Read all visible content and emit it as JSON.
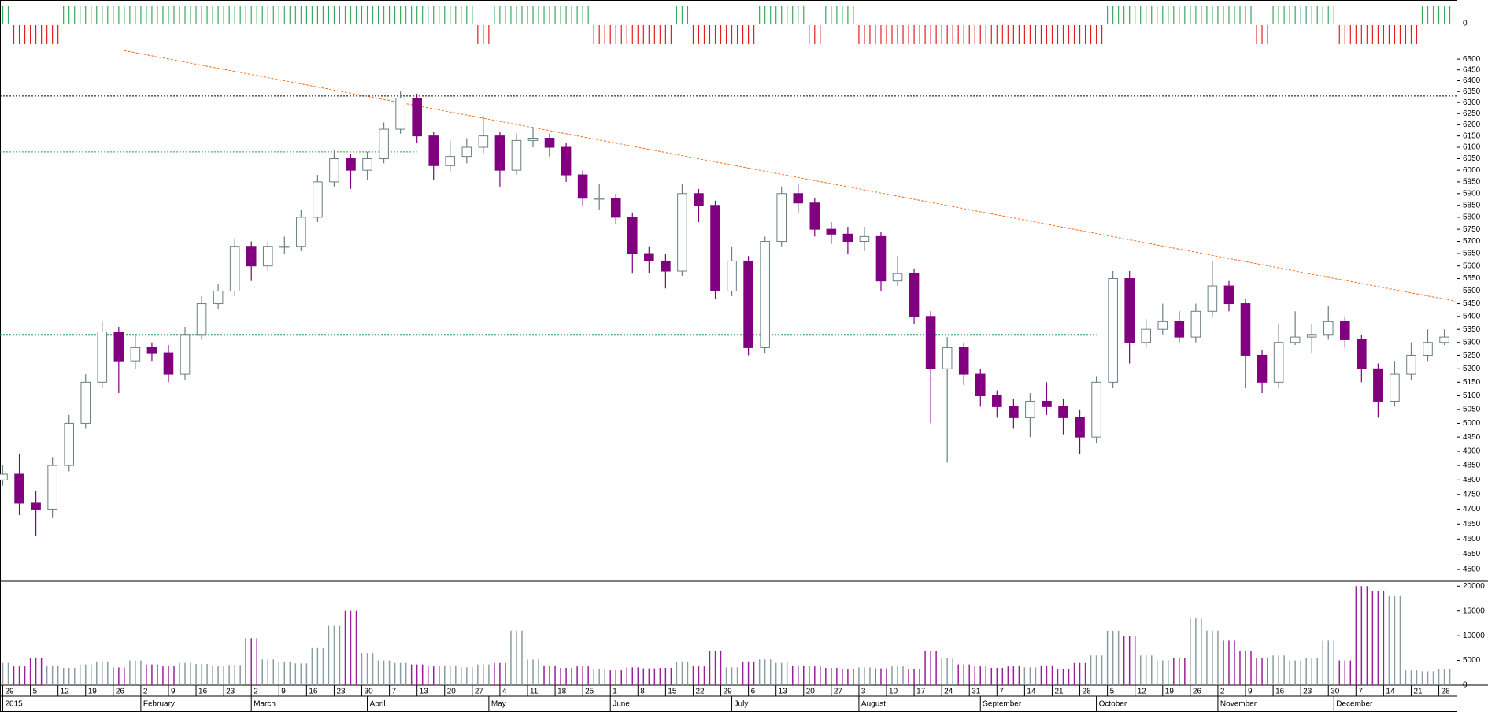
{
  "chart_data": {
    "type": "candlestick",
    "log_scale": true,
    "up_color": "#6b7f86",
    "down_color": "#800080",
    "x": [
      0,
      3,
      6,
      9,
      12,
      15,
      18,
      21,
      24,
      27,
      30,
      33,
      36,
      39,
      42,
      45,
      48,
      51,
      54,
      57,
      60,
      63,
      66,
      69,
      72,
      75,
      78,
      81,
      84,
      87,
      90,
      93,
      96,
      99,
      102,
      105,
      108,
      111,
      114,
      117,
      120,
      123,
      126,
      129,
      132,
      135,
      138,
      141,
      144,
      147,
      150,
      153,
      156,
      159,
      162,
      165,
      168,
      171,
      174,
      177,
      180,
      183,
      186,
      189,
      192,
      195,
      198,
      201,
      204,
      207,
      210,
      213,
      216,
      219,
      222,
      225,
      228,
      231,
      234,
      237,
      240,
      243,
      246,
      249,
      252,
      255,
      258,
      261
    ],
    "open": [
      4800,
      4820,
      4720,
      4700,
      4850,
      5000,
      5150,
      5340,
      5230,
      5280,
      5260,
      5180,
      5330,
      5450,
      5500,
      5680,
      5600,
      5680,
      5680,
      5800,
      5950,
      6050,
      6000,
      6050,
      6180,
      6320,
      6150,
      6020,
      6060,
      6100,
      6150,
      6000,
      6130,
      6140,
      6100,
      5980,
      5880,
      5880,
      5800,
      5650,
      5620,
      5580,
      5900,
      5850,
      5500,
      5620,
      5280,
      5700,
      5900,
      5860,
      5750,
      5730,
      5700,
      5720,
      5540,
      5570,
      5400,
      5200,
      5280,
      5180,
      5100,
      5060,
      5020,
      5080,
      5060,
      5020,
      4950,
      5150,
      5550,
      5300,
      5350,
      5380,
      5320,
      5420,
      5520,
      5450,
      5250,
      5150,
      5300,
      5320,
      5330,
      5380,
      5310,
      5200,
      5080,
      5180,
      5250,
      5300
    ],
    "high": [
      4850,
      4890,
      4760,
      4880,
      5030,
      5180,
      5380,
      5360,
      5330,
      5300,
      5290,
      5360,
      5480,
      5530,
      5710,
      5700,
      5700,
      5720,
      5830,
      5980,
      6090,
      6070,
      6080,
      6210,
      6350,
      6340,
      6170,
      6130,
      6140,
      6240,
      6170,
      6160,
      6190,
      6160,
      6120,
      6000,
      5940,
      5900,
      5820,
      5680,
      5650,
      5940,
      5920,
      5870,
      5680,
      5640,
      5720,
      5930,
      5940,
      5880,
      5780,
      5760,
      5760,
      5740,
      5640,
      5590,
      5420,
      5320,
      5300,
      5200,
      5120,
      5090,
      5110,
      5150,
      5090,
      5050,
      5170,
      5580,
      5580,
      5390,
      5450,
      5420,
      5450,
      5620,
      5540,
      5470,
      5270,
      5370,
      5420,
      5370,
      5440,
      5400,
      5330,
      5220,
      5230,
      5300,
      5350,
      5350
    ],
    "low": [
      4780,
      4680,
      4610,
      4670,
      4830,
      4980,
      5130,
      5110,
      5200,
      5230,
      5150,
      5160,
      5310,
      5430,
      5480,
      5540,
      5580,
      5650,
      5660,
      5780,
      5930,
      5920,
      5960,
      6030,
      6160,
      6120,
      5960,
      5990,
      6030,
      6070,
      5930,
      5980,
      6100,
      6060,
      5950,
      5850,
      5830,
      5770,
      5570,
      5570,
      5510,
      5560,
      5780,
      5470,
      5480,
      5250,
      5260,
      5680,
      5820,
      5720,
      5690,
      5650,
      5660,
      5500,
      5520,
      5370,
      5000,
      4860,
      5140,
      5060,
      5020,
      4980,
      4950,
      5030,
      4960,
      4890,
      4930,
      5130,
      5220,
      5280,
      5330,
      5300,
      5300,
      5400,
      5420,
      5130,
      5110,
      5130,
      5290,
      5260,
      5310,
      5280,
      5150,
      5020,
      5060,
      5160,
      5230,
      5290
    ],
    "close": [
      4820,
      4720,
      4700,
      4850,
      5000,
      5150,
      5340,
      5230,
      5280,
      5260,
      5180,
      5330,
      5450,
      5500,
      5680,
      5600,
      5680,
      5680,
      5800,
      5950,
      6050,
      6000,
      6050,
      6180,
      6320,
      6150,
      6020,
      6060,
      6100,
      6150,
      6000,
      6130,
      6140,
      6100,
      5980,
      5880,
      5880,
      5800,
      5650,
      5620,
      5580,
      5900,
      5850,
      5500,
      5620,
      5280,
      5700,
      5900,
      5860,
      5750,
      5730,
      5700,
      5720,
      5540,
      5570,
      5400,
      5200,
      5280,
      5180,
      5100,
      5060,
      5020,
      5080,
      5060,
      5020,
      4950,
      5150,
      5550,
      5300,
      5350,
      5380,
      5320,
      5420,
      5520,
      5450,
      5250,
      5150,
      5300,
      5320,
      5330,
      5380,
      5310,
      5200,
      5080,
      5180,
      5250,
      5300,
      5320
    ],
    "xlim": [
      -0.5,
      263.2
    ],
    "ylim": [
      4462,
      6556
    ],
    "yticks": [
      4500,
      4550,
      4600,
      4650,
      4700,
      4750,
      4800,
      4850,
      4900,
      4950,
      5000,
      5050,
      5100,
      5150,
      5200,
      5250,
      5300,
      5350,
      5400,
      5450,
      5500,
      5550,
      5600,
      5650,
      5700,
      5750,
      5800,
      5850,
      5900,
      5950,
      6000,
      6050,
      6100,
      6150,
      6200,
      6250,
      6300,
      6350,
      6400,
      6450,
      6500
    ],
    "xticks": [
      {
        "value": 0,
        "label": "29"
      },
      {
        "value": 5,
        "label": "5"
      },
      {
        "value": 10,
        "label": "12"
      },
      {
        "value": 15,
        "label": "19"
      },
      {
        "value": 20,
        "label": "26"
      },
      {
        "value": 25,
        "label": "2"
      },
      {
        "value": 30,
        "label": "9"
      },
      {
        "value": 35,
        "label": "16"
      },
      {
        "value": 40,
        "label": "23"
      },
      {
        "value": 45,
        "label": "2"
      },
      {
        "value": 50,
        "label": "9"
      },
      {
        "value": 55,
        "label": "16"
      },
      {
        "value": 60,
        "label": "23"
      },
      {
        "value": 65,
        "label": "30"
      },
      {
        "value": 70,
        "label": "7"
      },
      {
        "value": 75,
        "label": "13"
      },
      {
        "value": 80,
        "label": "20"
      },
      {
        "value": 85,
        "label": "27"
      },
      {
        "value": 90,
        "label": "4"
      },
      {
        "value": 95,
        "label": "11"
      },
      {
        "value": 100,
        "label": "18"
      },
      {
        "value": 105,
        "label": "25"
      },
      {
        "value": 110,
        "label": "1"
      },
      {
        "value": 115,
        "label": "8"
      },
      {
        "value": 120,
        "label": "15"
      },
      {
        "value": 125,
        "label": "22"
      },
      {
        "value": 130,
        "label": "29"
      },
      {
        "value": 135,
        "label": "6"
      },
      {
        "value": 140,
        "label": "13"
      },
      {
        "value": 145,
        "label": "20"
      },
      {
        "value": 150,
        "label": "27"
      },
      {
        "value": 155,
        "label": "3"
      },
      {
        "value": 160,
        "label": "10"
      },
      {
        "value": 165,
        "label": "17"
      },
      {
        "value": 170,
        "label": "24"
      },
      {
        "value": 175,
        "label": "31"
      },
      {
        "value": 180,
        "label": "7"
      },
      {
        "value": 185,
        "label": "14"
      },
      {
        "value": 190,
        "label": "21"
      },
      {
        "value": 195,
        "label": "28"
      },
      {
        "value": 200,
        "label": "5"
      },
      {
        "value": 205,
        "label": "12"
      },
      {
        "value": 210,
        "label": "19"
      },
      {
        "value": 215,
        "label": "26"
      },
      {
        "value": 220,
        "label": "2"
      },
      {
        "value": 225,
        "label": "9"
      },
      {
        "value": 230,
        "label": "16"
      },
      {
        "value": 235,
        "label": "23"
      },
      {
        "value": 240,
        "label": "30"
      },
      {
        "value": 245,
        "label": "7"
      },
      {
        "value": 250,
        "label": "14"
      },
      {
        "value": 255,
        "label": "21"
      },
      {
        "value": 260,
        "label": "28"
      }
    ],
    "month_ticks": [
      {
        "value": 0,
        "label": "2015"
      },
      {
        "value": 25,
        "label": "February"
      },
      {
        "value": 45,
        "label": "March"
      },
      {
        "value": 66,
        "label": "April"
      },
      {
        "value": 88,
        "label": "May"
      },
      {
        "value": 110,
        "label": "June"
      },
      {
        "value": 132,
        "label": "July"
      },
      {
        "value": 155,
        "label": "August"
      },
      {
        "value": 177,
        "label": "September"
      },
      {
        "value": 198,
        "label": "October"
      },
      {
        "value": 220,
        "label": "November"
      },
      {
        "value": 241,
        "label": "December"
      }
    ],
    "hlines": [
      {
        "value": 6330,
        "color": "#000000",
        "x_end": 263.2
      },
      {
        "value": 6080,
        "color": "#2ea04a",
        "x_end": 75
      },
      {
        "value": 5330,
        "color": "#2ea04a",
        "x_end": 198
      }
    ],
    "trendline": {
      "x": [
        22,
        263
      ],
      "y": [
        6540,
        5460
      ],
      "color": "#f07020"
    },
    "volume": {
      "values": [
        4500,
        3800,
        5500,
        4000,
        3500,
        4200,
        4800,
        3600,
        5000,
        4200,
        3800,
        4500,
        4300,
        3900,
        4100,
        9500,
        5200,
        4800,
        4400,
        7500,
        12000,
        15000,
        6500,
        5000,
        4500,
        4200,
        3800,
        4000,
        3600,
        4200,
        4500,
        11000,
        5200,
        4000,
        3500,
        3800,
        3200,
        3000,
        3600,
        3400,
        3500,
        4800,
        3800,
        7000,
        3600,
        4800,
        5200,
        4500,
        4000,
        3800,
        3500,
        3300,
        3600,
        3400,
        3800,
        3200,
        7000,
        5500,
        4200,
        3800,
        3500,
        3800,
        3600,
        4000,
        3300,
        4500,
        6000,
        11000,
        10000,
        6000,
        5000,
        5500,
        13500,
        11000,
        9000,
        7000,
        5500,
        6000,
        5000,
        5500,
        9000,
        5000,
        20000,
        19000,
        18000,
        3000,
        2800,
        3200
      ],
      "ylim": [
        0,
        21000
      ],
      "yticks": [
        0,
        5000,
        10000,
        15000,
        20000
      ]
    },
    "signal": {
      "values": [
        1,
        -1,
        -1,
        -1,
        1,
        1,
        1,
        1,
        1,
        1,
        1,
        1,
        1,
        1,
        1,
        1,
        1,
        1,
        1,
        1,
        1,
        1,
        1,
        1,
        1,
        1,
        1,
        1,
        1,
        -1,
        1,
        1,
        1,
        1,
        1,
        1,
        -1,
        -1,
        -1,
        -1,
        -1,
        1,
        -1,
        -1,
        -1,
        -1,
        1,
        1,
        1,
        -1,
        1,
        1,
        -1,
        -1,
        -1,
        -1,
        -1,
        -1,
        -1,
        -1,
        -1,
        -1,
        -1,
        -1,
        -1,
        -1,
        -1,
        1,
        1,
        1,
        1,
        1,
        1,
        1,
        1,
        1,
        -1,
        1,
        1,
        1,
        1,
        -1,
        -1,
        -1,
        -1,
        -1,
        1,
        1
      ],
      "up_color": "#3aa860",
      "down_color": "#e02020",
      "yticks": [
        0
      ]
    }
  }
}
